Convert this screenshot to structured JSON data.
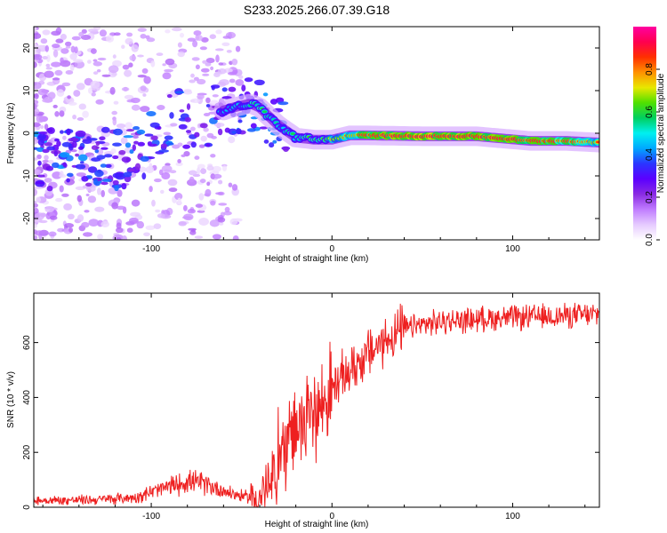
{
  "title": "S233.2025.266.07.39.G18",
  "colorbar": {
    "label": "Normalized spectral amplitude",
    "ticks": [
      "0.0",
      "0.2",
      "0.4",
      "0.6",
      "0.8"
    ],
    "colors": [
      "#ffffff",
      "#e6cbff",
      "#c07cff",
      "#8a2be2",
      "#5b00ff",
      "#2b35ff",
      "#00a8ff",
      "#00f0f0",
      "#00d060",
      "#50e000",
      "#e8e800",
      "#ff9000",
      "#ff3000",
      "#ff0050",
      "#ff00a0"
    ]
  },
  "chart_data": [
    {
      "type": "heatmap",
      "name": "spectrogram",
      "xlabel": "Height of straight line (km)",
      "ylabel": "Frequency (Hz)",
      "xlim": [
        -165,
        148
      ],
      "ylim": [
        -25,
        25
      ],
      "xticks": [
        -100,
        0,
        100
      ],
      "xtick_labels": [
        "-100",
        "0",
        "100"
      ],
      "yticks": [
        -20,
        -10,
        0,
        10,
        20
      ],
      "ytick_labels": [
        "-20",
        "-10",
        "0",
        "10",
        "20"
      ],
      "ridge": [
        {
          "x": -120,
          "y": -6,
          "amp": 0.35
        },
        {
          "x": -105,
          "y": -5,
          "amp": 0.35
        },
        {
          "x": -90,
          "y": 3,
          "amp": 0.4
        },
        {
          "x": -70,
          "y": 4,
          "amp": 0.4
        },
        {
          "x": -55,
          "y": 6,
          "amp": 0.45
        },
        {
          "x": -45,
          "y": 7,
          "amp": 0.55
        },
        {
          "x": -40,
          "y": 6,
          "amp": 0.6
        },
        {
          "x": -30,
          "y": 2,
          "amp": 0.5
        },
        {
          "x": -20,
          "y": -1,
          "amp": 0.55
        },
        {
          "x": -10,
          "y": -1.5,
          "amp": 0.6
        },
        {
          "x": 0,
          "y": -1.5,
          "amp": 0.75
        },
        {
          "x": 10,
          "y": -0.5,
          "amp": 0.8
        },
        {
          "x": 20,
          "y": -0.5,
          "amp": 0.95
        },
        {
          "x": 50,
          "y": -0.7,
          "amp": 1.0
        },
        {
          "x": 80,
          "y": -0.7,
          "amp": 0.98
        },
        {
          "x": 110,
          "y": -1.8,
          "amp": 0.95
        },
        {
          "x": 130,
          "y": -1.8,
          "amp": 0.9
        },
        {
          "x": 148,
          "y": -2.2,
          "amp": 0.8
        }
      ]
    },
    {
      "type": "line",
      "name": "snr",
      "xlabel": "Height of straight line (km)",
      "ylabel": "SNR (10 * v/v)",
      "xlim": [
        -165,
        148
      ],
      "ylim": [
        0,
        780
      ],
      "xticks": [
        -100,
        0,
        100
      ],
      "xtick_labels": [
        "-100",
        "0",
        "100"
      ],
      "yticks": [
        0,
        200,
        400,
        600
      ],
      "ytick_labels": [
        "0",
        "200",
        "400",
        "600"
      ],
      "series": [
        {
          "name": "SNR",
          "color": "#ee2020",
          "x": [
            -165,
            -150,
            -130,
            -110,
            -100,
            -90,
            -80,
            -70,
            -60,
            -50,
            -40,
            -35,
            -30,
            -25,
            -20,
            -15,
            -10,
            -5,
            0,
            10,
            20,
            30,
            40,
            50,
            60,
            70,
            80,
            90,
            100,
            110,
            120,
            130,
            140,
            148
          ],
          "y": [
            25,
            25,
            28,
            35,
            55,
            75,
            95,
            85,
            60,
            40,
            35,
            80,
            160,
            250,
            280,
            310,
            340,
            380,
            430,
            500,
            560,
            610,
            650,
            665,
            675,
            680,
            685,
            690,
            690,
            692,
            695,
            698,
            700,
            702
          ]
        }
      ]
    }
  ]
}
